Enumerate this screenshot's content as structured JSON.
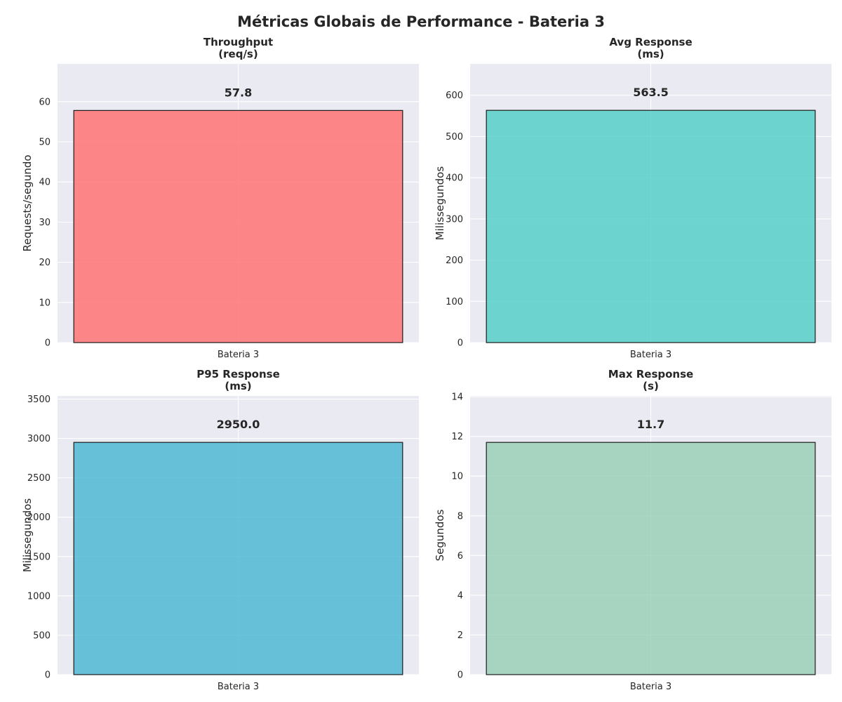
{
  "figure": {
    "title": "Métricas Globais de Performance - Bateria 3"
  },
  "chart_data": [
    {
      "type": "bar",
      "title_line1": "Throughput",
      "title_line2": "(req/s)",
      "categories": [
        "Bateria 3"
      ],
      "values": [
        57.8
      ],
      "value_labels": [
        "57.8"
      ],
      "xlabel": "",
      "ylabel": "Requests/segundo",
      "ylim": [
        0,
        69.4
      ],
      "yticks": [
        0,
        10,
        20,
        30,
        40,
        50,
        60
      ],
      "grid": true,
      "color": "#ff6b6b"
    },
    {
      "type": "bar",
      "title_line1": "Avg Response",
      "title_line2": "(ms)",
      "categories": [
        "Bateria 3"
      ],
      "values": [
        563.5
      ],
      "value_labels": [
        "563.5"
      ],
      "xlabel": "",
      "ylabel": "Milissegundos",
      "ylim": [
        0,
        676.2
      ],
      "yticks": [
        0,
        100,
        200,
        300,
        400,
        500,
        600
      ],
      "grid": true,
      "color": "#4ecdc4"
    },
    {
      "type": "bar",
      "title_line1": "P95 Response",
      "title_line2": "(ms)",
      "categories": [
        "Bateria 3"
      ],
      "values": [
        2950.0
      ],
      "value_labels": [
        "2950.0"
      ],
      "xlabel": "",
      "ylabel": "Milissegundos",
      "ylim": [
        0,
        3540
      ],
      "yticks": [
        0,
        500,
        1000,
        1500,
        2000,
        2500,
        3000,
        3500
      ],
      "grid": true,
      "color": "#45b7d1"
    },
    {
      "type": "bar",
      "title_line1": "Max Response",
      "title_line2": "(s)",
      "categories": [
        "Bateria 3"
      ],
      "values": [
        11.7
      ],
      "value_labels": [
        "11.7"
      ],
      "xlabel": "",
      "ylabel": "Segundos",
      "ylim": [
        0,
        14.04
      ],
      "yticks": [
        0,
        2,
        4,
        6,
        8,
        10,
        12,
        14
      ],
      "grid": true,
      "color": "#96ceb4"
    }
  ]
}
